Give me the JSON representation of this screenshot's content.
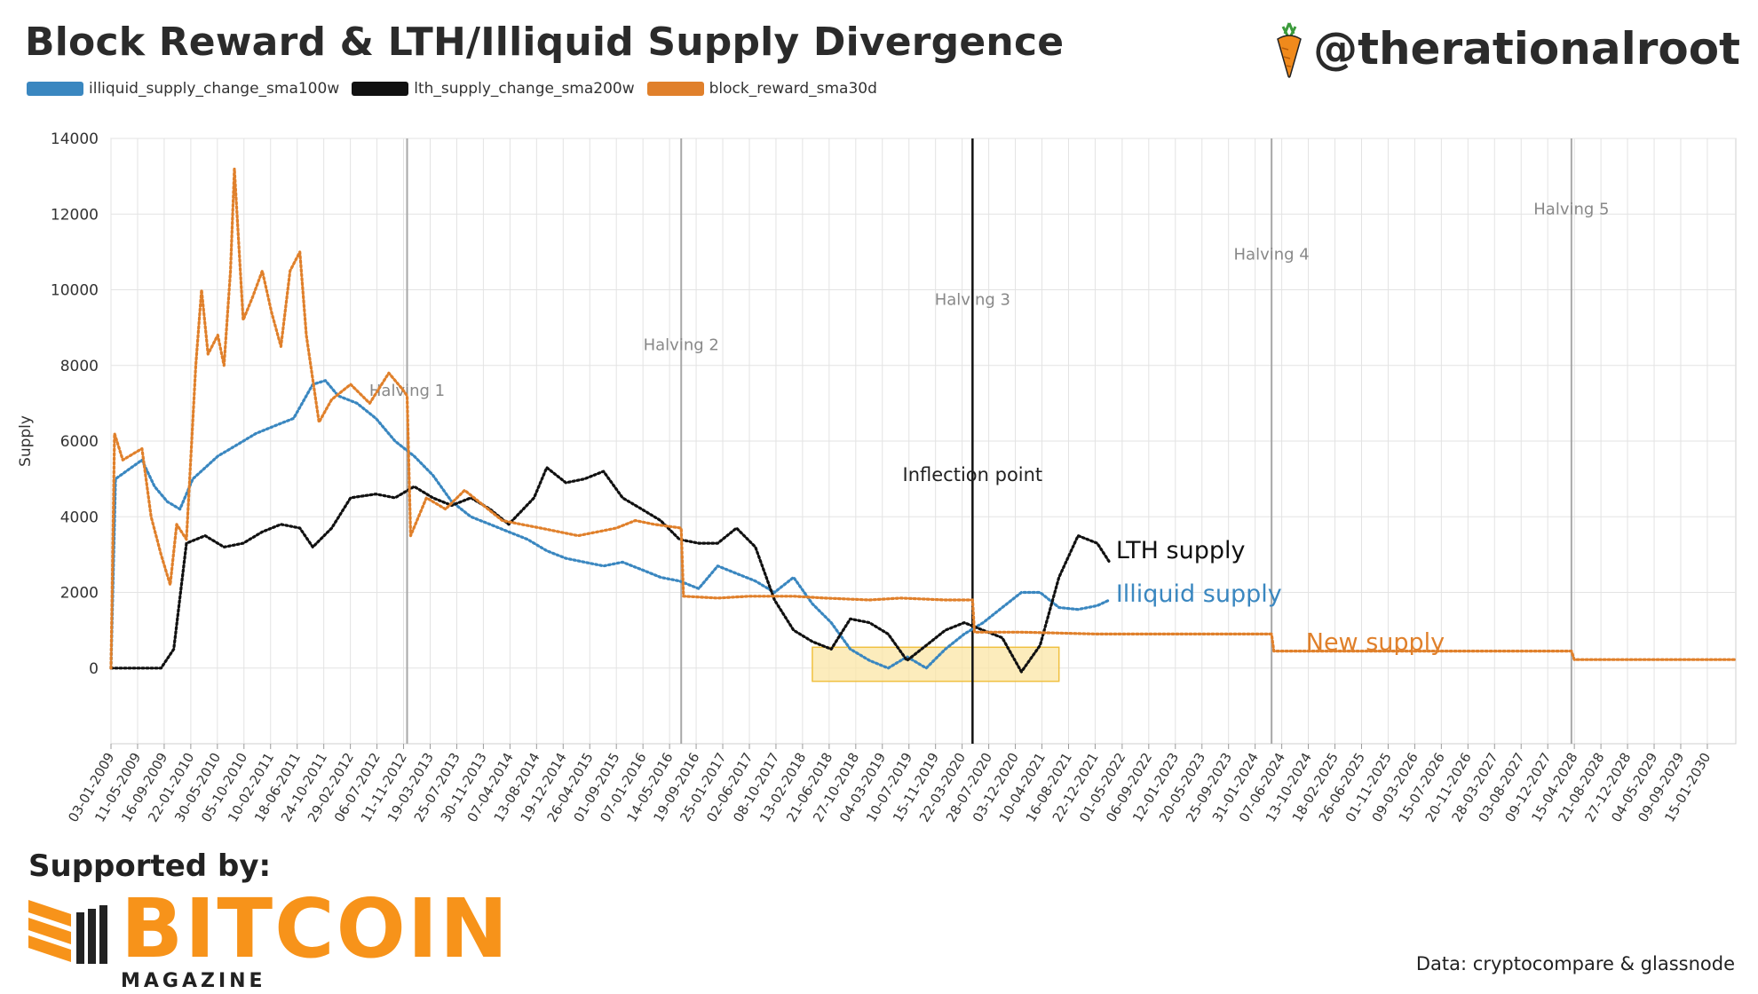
{
  "header": {
    "title": "Block Reward & LTH/Illiquid Supply Divergence",
    "handle": "@therationalroot"
  },
  "icons": {
    "handle_logo": "carrot-icon",
    "brand_logo": "bitcoin-magazine-logo-icon"
  },
  "footer": {
    "supported_by": "Supported by:",
    "brand_name": "BITCOIN",
    "brand_sub": "MAGAZINE",
    "source": "Data: cryptocompare & glassnode"
  },
  "colors": {
    "illiquid": "#3a87c0",
    "lth": "#111111",
    "reward": "#e0802b",
    "highlight": "#fbe5a6"
  },
  "chart_data": {
    "type": "line",
    "title": "Block Reward & LTH/Illiquid Supply Divergence",
    "ylabel": "Supply",
    "xlabel": "",
    "ylim": [
      -2000,
      14000
    ],
    "yticks": [
      0,
      2000,
      4000,
      6000,
      8000,
      10000,
      12000,
      14000
    ],
    "grid": true,
    "legend_position": "top-left",
    "x_tick_labels": [
      "03-01-2009",
      "11-05-2009",
      "16-09-2009",
      "22-01-2010",
      "30-05-2010",
      "05-10-2010",
      "10-02-2011",
      "18-06-2011",
      "24-10-2011",
      "29-02-2012",
      "06-07-2012",
      "11-11-2012",
      "19-03-2013",
      "25-07-2013",
      "30-11-2013",
      "07-04-2014",
      "13-08-2014",
      "19-12-2014",
      "26-04-2015",
      "01-09-2015",
      "07-01-2016",
      "14-05-2016",
      "19-09-2016",
      "25-01-2017",
      "02-06-2017",
      "08-10-2017",
      "13-02-2018",
      "21-06-2018",
      "27-10-2018",
      "04-03-2019",
      "10-07-2019",
      "15-11-2019",
      "22-03-2020",
      "28-07-2020",
      "03-12-2020",
      "10-04-2021",
      "16-08-2021",
      "22-12-2021",
      "01-05-2022",
      "06-09-2022",
      "12-01-2023",
      "20-05-2023",
      "25-09-2023",
      "31-01-2024",
      "07-06-2024",
      "13-10-2024",
      "18-02-2025",
      "26-06-2025",
      "01-11-2025",
      "09-03-2026",
      "15-07-2026",
      "20-11-2026",
      "28-03-2027",
      "03-08-2027",
      "09-12-2027",
      "15-04-2028",
      "21-08-2028",
      "27-12-2028",
      "04-05-2029",
      "09-09-2029",
      "15-01-2030"
    ],
    "x_range": [
      "2009-01-03",
      "2030-06-01"
    ],
    "series": [
      {
        "name": "illiquid_supply_change_sma100w",
        "color": "#3a87c0",
        "points": [
          [
            "2009-01-03",
            0
          ],
          [
            "2009-01-25",
            5000
          ],
          [
            "2009-06-01",
            5500
          ],
          [
            "2009-08-01",
            4800
          ],
          [
            "2009-10-01",
            4400
          ],
          [
            "2009-12-01",
            4200
          ],
          [
            "2010-02-01",
            5000
          ],
          [
            "2010-06-01",
            5600
          ],
          [
            "2010-09-01",
            5900
          ],
          [
            "2010-12-01",
            6200
          ],
          [
            "2011-03-01",
            6400
          ],
          [
            "2011-06-01",
            6600
          ],
          [
            "2011-09-01",
            7500
          ],
          [
            "2011-11-01",
            7600
          ],
          [
            "2012-01-01",
            7200
          ],
          [
            "2012-04-01",
            7000
          ],
          [
            "2012-07-01",
            6600
          ],
          [
            "2012-10-01",
            6000
          ],
          [
            "2013-01-01",
            5600
          ],
          [
            "2013-04-01",
            5100
          ],
          [
            "2013-07-01",
            4400
          ],
          [
            "2013-10-01",
            4000
          ],
          [
            "2014-01-01",
            3800
          ],
          [
            "2014-04-01",
            3600
          ],
          [
            "2014-07-01",
            3400
          ],
          [
            "2014-10-01",
            3100
          ],
          [
            "2015-01-01",
            2900
          ],
          [
            "2015-04-01",
            2800
          ],
          [
            "2015-07-01",
            2700
          ],
          [
            "2015-10-01",
            2800
          ],
          [
            "2016-01-01",
            2600
          ],
          [
            "2016-04-01",
            2400
          ],
          [
            "2016-07-01",
            2300
          ],
          [
            "2016-10-01",
            2100
          ],
          [
            "2017-01-01",
            2700
          ],
          [
            "2017-04-01",
            2500
          ],
          [
            "2017-07-01",
            2300
          ],
          [
            "2017-10-01",
            2000
          ],
          [
            "2018-01-01",
            2400
          ],
          [
            "2018-04-01",
            1700
          ],
          [
            "2018-07-01",
            1200
          ],
          [
            "2018-10-01",
            500
          ],
          [
            "2019-01-01",
            200
          ],
          [
            "2019-04-01",
            0
          ],
          [
            "2019-07-01",
            300
          ],
          [
            "2019-10-01",
            0
          ],
          [
            "2020-01-01",
            500
          ],
          [
            "2020-04-01",
            900
          ],
          [
            "2020-07-01",
            1200
          ],
          [
            "2020-10-01",
            1600
          ],
          [
            "2021-01-01",
            2000
          ],
          [
            "2021-04-01",
            2000
          ],
          [
            "2021-07-01",
            1600
          ],
          [
            "2021-10-01",
            1550
          ],
          [
            "2022-01-01",
            1650
          ],
          [
            "2022-03-01",
            1800
          ]
        ]
      },
      {
        "name": "lth_supply_change_sma200w",
        "color": "#111111",
        "points": [
          [
            "2009-01-03",
            0
          ],
          [
            "2009-09-01",
            0
          ],
          [
            "2009-11-01",
            500
          ],
          [
            "2010-01-01",
            3300
          ],
          [
            "2010-04-01",
            3500
          ],
          [
            "2010-07-01",
            3200
          ],
          [
            "2010-10-01",
            3300
          ],
          [
            "2011-01-01",
            3600
          ],
          [
            "2011-04-01",
            3800
          ],
          [
            "2011-07-01",
            3700
          ],
          [
            "2011-09-01",
            3200
          ],
          [
            "2011-12-01",
            3700
          ],
          [
            "2012-03-01",
            4500
          ],
          [
            "2012-07-01",
            4600
          ],
          [
            "2012-10-01",
            4500
          ],
          [
            "2013-01-01",
            4800
          ],
          [
            "2013-04-01",
            4500
          ],
          [
            "2013-07-01",
            4300
          ],
          [
            "2013-10-01",
            4500
          ],
          [
            "2014-01-01",
            4200
          ],
          [
            "2014-04-01",
            3800
          ],
          [
            "2014-08-01",
            4500
          ],
          [
            "2014-10-01",
            5300
          ],
          [
            "2015-01-01",
            4900
          ],
          [
            "2015-04-01",
            5000
          ],
          [
            "2015-07-01",
            5200
          ],
          [
            "2015-10-01",
            4500
          ],
          [
            "2016-01-01",
            4200
          ],
          [
            "2016-04-01",
            3900
          ],
          [
            "2016-07-01",
            3400
          ],
          [
            "2016-10-01",
            3300
          ],
          [
            "2017-01-01",
            3300
          ],
          [
            "2017-04-01",
            3700
          ],
          [
            "2017-07-01",
            3200
          ],
          [
            "2017-10-01",
            1800
          ],
          [
            "2018-01-01",
            1000
          ],
          [
            "2018-04-01",
            700
          ],
          [
            "2018-07-01",
            500
          ],
          [
            "2018-10-01",
            1300
          ],
          [
            "2019-01-01",
            1200
          ],
          [
            "2019-04-01",
            900
          ],
          [
            "2019-07-01",
            200
          ],
          [
            "2019-10-01",
            600
          ],
          [
            "2020-01-01",
            1000
          ],
          [
            "2020-04-01",
            1200
          ],
          [
            "2020-07-01",
            1000
          ],
          [
            "2020-10-01",
            800
          ],
          [
            "2021-01-01",
            -100
          ],
          [
            "2021-04-01",
            600
          ],
          [
            "2021-07-01",
            2400
          ],
          [
            "2021-10-01",
            3500
          ],
          [
            "2022-01-01",
            3300
          ],
          [
            "2022-03-01",
            2800
          ]
        ]
      },
      {
        "name": "block_reward_sma30d",
        "color": "#e0802b",
        "points": [
          [
            "2009-01-03",
            0
          ],
          [
            "2009-01-20",
            6200
          ],
          [
            "2009-03-01",
            5500
          ],
          [
            "2009-06-01",
            5800
          ],
          [
            "2009-07-15",
            4000
          ],
          [
            "2009-09-01",
            3000
          ],
          [
            "2009-10-15",
            2200
          ],
          [
            "2009-11-15",
            3800
          ],
          [
            "2010-01-01",
            3400
          ],
          [
            "2010-02-15",
            8000
          ],
          [
            "2010-03-15",
            10000
          ],
          [
            "2010-04-15",
            8300
          ],
          [
            "2010-06-01",
            8800
          ],
          [
            "2010-07-01",
            8000
          ],
          [
            "2010-08-01",
            10500
          ],
          [
            "2010-08-20",
            13200
          ],
          [
            "2010-10-01",
            9200
          ],
          [
            "2010-11-15",
            9800
          ],
          [
            "2011-01-01",
            10500
          ],
          [
            "2011-02-15",
            9400
          ],
          [
            "2011-04-01",
            8500
          ],
          [
            "2011-05-15",
            10500
          ],
          [
            "2011-07-01",
            11000
          ],
          [
            "2011-08-01",
            8800
          ],
          [
            "2011-10-01",
            6500
          ],
          [
            "2011-12-01",
            7100
          ],
          [
            "2012-03-01",
            7500
          ],
          [
            "2012-06-01",
            7000
          ],
          [
            "2012-09-01",
            7800
          ],
          [
            "2012-11-01",
            7400
          ],
          [
            "2012-11-28",
            7200
          ],
          [
            "2012-12-15",
            3500
          ],
          [
            "2013-03-01",
            4500
          ],
          [
            "2013-06-01",
            4200
          ],
          [
            "2013-09-01",
            4700
          ],
          [
            "2013-12-01",
            4300
          ],
          [
            "2014-03-01",
            3900
          ],
          [
            "2014-06-01",
            3800
          ],
          [
            "2014-09-01",
            3700
          ],
          [
            "2014-12-01",
            3600
          ],
          [
            "2015-03-01",
            3500
          ],
          [
            "2015-06-01",
            3600
          ],
          [
            "2015-09-01",
            3700
          ],
          [
            "2015-12-01",
            3900
          ],
          [
            "2016-03-01",
            3800
          ],
          [
            "2016-07-09",
            3700
          ],
          [
            "2016-07-20",
            1900
          ],
          [
            "2017-01-01",
            1850
          ],
          [
            "2017-06-01",
            1900
          ],
          [
            "2018-01-01",
            1900
          ],
          [
            "2018-06-01",
            1850
          ],
          [
            "2019-01-01",
            1800
          ],
          [
            "2019-06-01",
            1850
          ],
          [
            "2020-01-01",
            1800
          ],
          [
            "2020-05-11",
            1800
          ],
          [
            "2020-05-20",
            950
          ],
          [
            "2021-01-01",
            950
          ],
          [
            "2022-01-01",
            900
          ],
          [
            "2024-04-19",
            900
          ],
          [
            "2024-04-30",
            450
          ],
          [
            "2028-04-01",
            450
          ],
          [
            "2028-04-15",
            225
          ],
          [
            "2030-06-01",
            225
          ]
        ]
      }
    ],
    "halvings": [
      {
        "label": "Halving 1",
        "date": "2012-11-28",
        "label_y": 7200
      },
      {
        "label": "Halving 2",
        "date": "2016-07-09",
        "label_y": 8400
      },
      {
        "label": "Halving 3",
        "date": "2020-05-11",
        "label_y": 9600
      },
      {
        "label": "Halving 4",
        "date": "2024-04-19",
        "label_y": 10800
      },
      {
        "label": "Halving 5",
        "date": "2028-04-01",
        "label_y": 12000
      }
    ],
    "inflection_point": {
      "label": "Inflection point",
      "date": "2020-05-11",
      "label_y": 4950
    },
    "highlight_box": {
      "x0": "2018-04-01",
      "x1": "2021-07-01",
      "y0": -350,
      "y1": 550
    },
    "annotations": [
      {
        "label": "LTH supply",
        "date": "2022-04-01",
        "y": 2900,
        "color": "#111111"
      },
      {
        "label": "Illiquid supply",
        "date": "2022-04-01",
        "y": 1750,
        "color": "#3a87c0"
      },
      {
        "label": "New supply",
        "date": "2024-10-01",
        "y": 480,
        "color": "#e0802b"
      }
    ]
  }
}
